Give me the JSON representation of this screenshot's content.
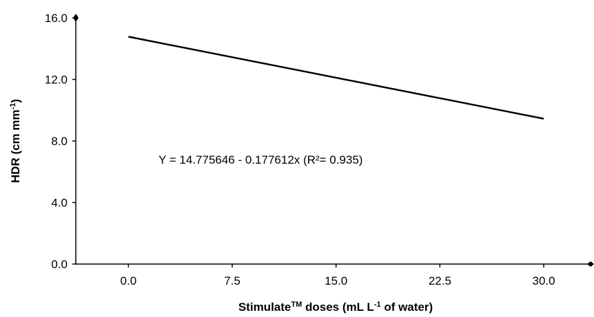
{
  "chart_data": {
    "type": "line",
    "ylabel_parts": [
      "HDR (cm mm",
      "-1",
      ")"
    ],
    "xlabel_parts": [
      "Stimulate",
      "TM",
      " doses (mL L",
      "-1",
      " of water)"
    ],
    "annotation": "Y = 14.775646 - 0.177612x (R²= 0.935)",
    "x": [
      0,
      30
    ],
    "series": [
      {
        "color": "#000000",
        "values": [
          14.776,
          9.447
        ]
      }
    ],
    "xlim": [
      -3.8,
      33.6
    ],
    "ylim": [
      0,
      16
    ],
    "xticks": [
      {
        "value": 0,
        "label": "0.0"
      },
      7.5,
      {
        "value": 15,
        "label": "15.0"
      },
      22.5,
      {
        "value": 30,
        "label": "30.0"
      }
    ],
    "yticks": [
      {
        "value": 0,
        "label": "0.0"
      },
      {
        "value": 4,
        "label": "4.0"
      },
      {
        "value": 8,
        "label": "8.0"
      },
      {
        "value": 12,
        "label": "12.0"
      },
      {
        "value": 16,
        "label": "16.0"
      }
    ],
    "grid": false
  }
}
